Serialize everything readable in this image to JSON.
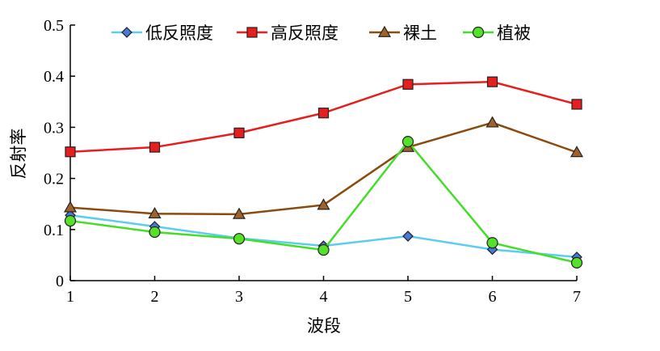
{
  "chart_data": {
    "type": "line",
    "title": "",
    "xlabel": "波段",
    "ylabel": "反射率",
    "x": [
      1,
      2,
      3,
      4,
      5,
      6,
      7
    ],
    "xlim": [
      1,
      7
    ],
    "ylim": [
      0,
      0.5
    ],
    "yticks": [
      "0",
      "0.1",
      "0.2",
      "0.3",
      "0.4",
      "0.5"
    ],
    "xticks": [
      "1",
      "2",
      "3",
      "4",
      "5",
      "6",
      "7"
    ],
    "grid": false,
    "legend_position": "top",
    "series": [
      {
        "name": "低反照度",
        "color": "#5bcdf0",
        "marker": "diamond",
        "marker_color": "#4a78d6",
        "values": [
          0.128,
          0.106,
          0.083,
          0.068,
          0.087,
          0.061,
          0.046
        ]
      },
      {
        "name": "高反照度",
        "color": "#e61e1e",
        "marker": "square",
        "marker_color": "#e61e1e",
        "values": [
          0.252,
          0.261,
          0.289,
          0.328,
          0.384,
          0.389,
          0.345
        ]
      },
      {
        "name": "裸土",
        "color": "#8b4b0e",
        "marker": "triangle",
        "marker_color": "#a0622a",
        "values": [
          0.143,
          0.131,
          0.13,
          0.148,
          0.261,
          0.309,
          0.251
        ]
      },
      {
        "name": "植被",
        "color": "#44dd2a",
        "marker": "circle",
        "marker_color": "#55e02a",
        "values": [
          0.117,
          0.095,
          0.082,
          0.06,
          0.272,
          0.074,
          0.035
        ]
      }
    ]
  }
}
